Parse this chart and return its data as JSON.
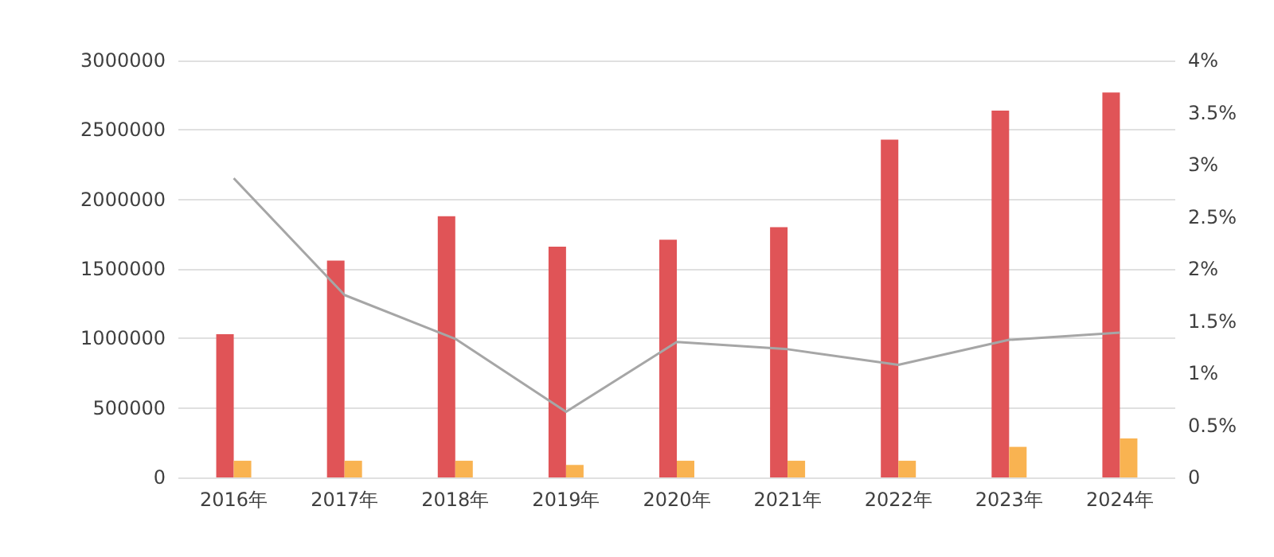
{
  "chart_data": {
    "type": "bar",
    "categories": [
      "2016年",
      "2017年",
      "2018年",
      "2019年",
      "2020年",
      "2021年",
      "2022年",
      "2023年",
      "2024年"
    ],
    "series": [
      {
        "color": "#e05457",
        "values": [
          1030000,
          1560000,
          1880000,
          1660000,
          1710000,
          1800000,
          2430000,
          2640000,
          2770000
        ]
      },
      {
        "color": "#f9b351",
        "values": [
          120000,
          120000,
          120000,
          90000,
          120000,
          120000,
          120000,
          220000,
          280000
        ]
      },
      {
        "type": "line",
        "axis": "y2",
        "color": "#a6a6a6",
        "marker": "none",
        "values": [
          2.87,
          1.75,
          1.33,
          0.63,
          1.3,
          1.23,
          1.08,
          1.32,
          1.39
        ]
      }
    ],
    "ylim": [
      0,
      3000000
    ],
    "yticks": [
      0,
      500000,
      1000000,
      1500000,
      2000000,
      2500000,
      3000000
    ],
    "y2lim": [
      0,
      4
    ],
    "y2ticks": [
      {
        "value": 0,
        "label": "0"
      },
      {
        "value": 0.5,
        "label": "0.5%"
      },
      {
        "value": 1,
        "label": "1%"
      },
      {
        "value": 1.5,
        "label": "1.5%"
      },
      {
        "value": 2,
        "label": "2%"
      },
      {
        "value": 2.5,
        "label": "2.5%"
      },
      {
        "value": 3,
        "label": "3%"
      },
      {
        "value": 3.5,
        "label": "3.5%"
      },
      {
        "value": 4,
        "label": "4%"
      }
    ],
    "grid": "y"
  }
}
